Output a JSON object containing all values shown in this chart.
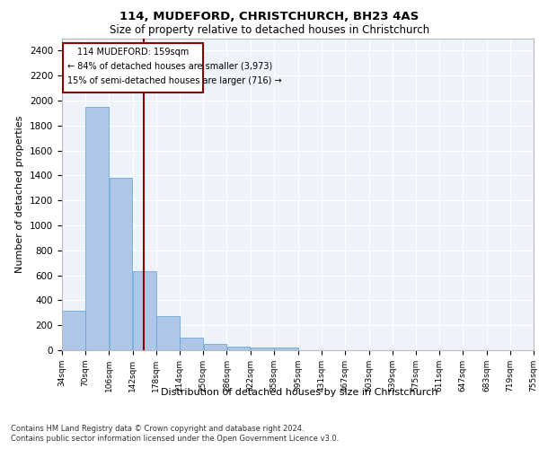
{
  "title1": "114, MUDEFORD, CHRISTCHURCH, BH23 4AS",
  "title2": "Size of property relative to detached houses in Christchurch",
  "xlabel": "Distribution of detached houses by size in Christchurch",
  "ylabel": "Number of detached properties",
  "footnote1": "Contains HM Land Registry data © Crown copyright and database right 2024.",
  "footnote2": "Contains public sector information licensed under the Open Government Licence v3.0.",
  "annotation_line1": "114 MUDEFORD: 159sqm",
  "annotation_line2": "← 84% of detached houses are smaller (3,973)",
  "annotation_line3": "15% of semi-detached houses are larger (716) →",
  "property_size": 159,
  "bin_edges": [
    34,
    70,
    106,
    142,
    178,
    214,
    250,
    286,
    322,
    358,
    395,
    431,
    467,
    503,
    539,
    575,
    611,
    647,
    683,
    719,
    755
  ],
  "bar_heights": [
    315,
    1950,
    1380,
    630,
    270,
    100,
    47,
    30,
    25,
    20,
    0,
    0,
    0,
    0,
    0,
    0,
    0,
    0,
    0,
    0
  ],
  "bar_color": "#aec6e8",
  "bar_edgecolor": "#5a9fd4",
  "vline_x": 159,
  "vline_color": "#8b0000",
  "ylim": [
    0,
    2500
  ],
  "yticks": [
    0,
    200,
    400,
    600,
    800,
    1000,
    1200,
    1400,
    1600,
    1800,
    2000,
    2200,
    2400
  ],
  "xlim": [
    34,
    755
  ],
  "xtick_labels": [
    "34sqm",
    "70sqm",
    "106sqm",
    "142sqm",
    "178sqm",
    "214sqm",
    "250sqm",
    "286sqm",
    "322sqm",
    "358sqm",
    "395sqm",
    "431sqm",
    "467sqm",
    "503sqm",
    "539sqm",
    "575sqm",
    "611sqm",
    "647sqm",
    "683sqm",
    "719sqm",
    "755sqm"
  ],
  "bg_color": "#eef2fb",
  "grid_color": "#ffffff",
  "annotation_box_color": "#ffffff",
  "annotation_box_edgecolor": "#8b0000"
}
